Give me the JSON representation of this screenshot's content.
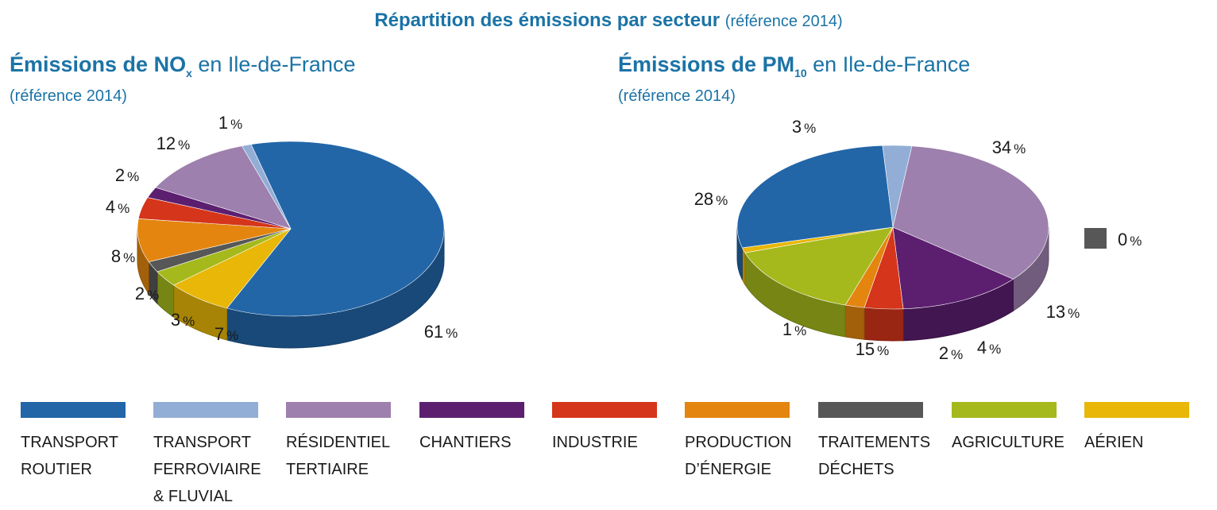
{
  "header": {
    "title_bold": "Répartition des émissions par secteur",
    "title_normal": "(référence 2014)"
  },
  "charts": [
    {
      "title_bold": "Émissions de NO",
      "title_sub": "x",
      "title_rest": " en Ile-de-France",
      "subtitle": "(référence 2014)"
    },
    {
      "title_bold": "Émissions de PM",
      "title_sub": "10",
      "title_rest": " en Ile-de-France",
      "subtitle": "(référence 2014)"
    }
  ],
  "colors": {
    "transport_routier": "#2266a8",
    "transport_ferroviaire": "#93aed6",
    "residentiel": "#9d80ad",
    "chantiers": "#5c1f70",
    "industrie": "#d5351a",
    "production": "#e3850f",
    "traitements": "#575757",
    "agriculture": "#a5b91c",
    "aerien": "#e8b707"
  },
  "legend": [
    {
      "key": "transport_routier",
      "lines": [
        "TRANSPORT",
        "ROUTIER"
      ]
    },
    {
      "key": "transport_ferroviaire",
      "lines": [
        "TRANSPORT",
        "FERROVIAIRE",
        "& FLUVIAL"
      ]
    },
    {
      "key": "residentiel",
      "lines": [
        "RÉSIDENTIEL",
        "TERTIAIRE"
      ]
    },
    {
      "key": "chantiers",
      "lines": [
        "CHANTIERS"
      ]
    },
    {
      "key": "industrie",
      "lines": [
        "INDUSTRIE"
      ]
    },
    {
      "key": "production",
      "lines": [
        "PRODUCTION",
        "D’ÉNERGIE"
      ]
    },
    {
      "key": "traitements",
      "lines": [
        "TRAITEMENTS",
        "DÉCHETS"
      ]
    },
    {
      "key": "agriculture",
      "lines": [
        "AGRICULTURE"
      ]
    },
    {
      "key": "aerien",
      "lines": [
        "AÉRIEN"
      ]
    }
  ],
  "chart_data": [
    {
      "type": "pie",
      "title": "Émissions de NOx en Ile-de-France",
      "subtitle": "(référence 2014)",
      "categories": [
        "TRANSPORT ROUTIER",
        "AÉRIEN",
        "AGRICULTURE",
        "TRAITEMENTS DÉCHETS",
        "PRODUCTION D’ÉNERGIE",
        "INDUSTRIE",
        "CHANTIERS",
        "RÉSIDENTIEL TERTIAIRE",
        "TRANSPORT FERROVIAIRE & FLUVIAL"
      ],
      "keys": [
        "transport_routier",
        "aerien",
        "agriculture",
        "traitements",
        "production",
        "industrie",
        "chantiers",
        "residentiel",
        "transport_ferroviaire"
      ],
      "values": [
        61,
        7,
        3,
        2,
        8,
        4,
        2,
        12,
        1
      ],
      "labels": [
        "61",
        "7",
        "3",
        "2",
        "8",
        "4",
        "2",
        "12",
        "1"
      ],
      "unit": "%"
    },
    {
      "type": "pie",
      "title": "Émissions de PM10 en Ile-de-France",
      "subtitle": "(référence 2014)",
      "categories": [
        "RÉSIDENTIEL TERTIAIRE",
        "CHANTIERS",
        "INDUSTRIE",
        "PRODUCTION D’ÉNERGIE",
        "AGRICULTURE",
        "AÉRIEN",
        "TRANSPORT ROUTIER",
        "TRANSPORT FERROVIAIRE & FLUVIAL",
        "TRAITEMENTS DÉCHETS"
      ],
      "keys": [
        "residentiel",
        "chantiers",
        "industrie",
        "production",
        "agriculture",
        "aerien",
        "transport_routier",
        "transport_ferroviaire",
        "traitements"
      ],
      "values": [
        34,
        13,
        4,
        2,
        15,
        1,
        28,
        3,
        0
      ],
      "labels": [
        "34",
        "13",
        "4",
        "2",
        "15",
        "1",
        "28",
        "3",
        "0"
      ],
      "unit": "%"
    }
  ]
}
